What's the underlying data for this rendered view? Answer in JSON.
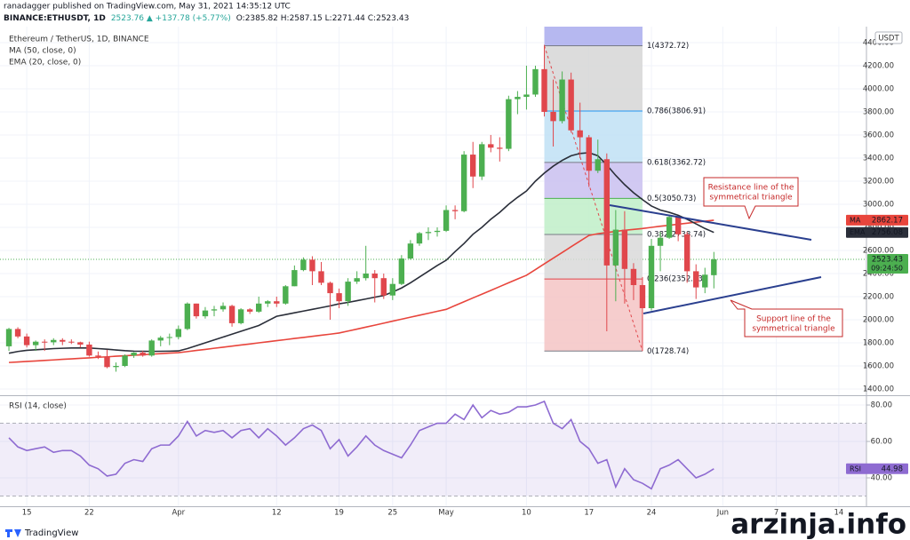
{
  "header": {
    "publisher": "ranadagger published on TradingView.com, May 31, 2021 14:35:12 UTC",
    "symbol": "BINANCE:ETHUSDT, 1D",
    "change": "2523.76 ▲ +137.78 (+5.77%)",
    "ohlc": "O:2385.82 H:2587.15 L:2271.44 C:2523.43"
  },
  "chart_data": {
    "type": "candlestick",
    "title": "Ethereum / TetherUS, 1D, BINANCE",
    "currency": "USDT",
    "timer": "09:24:50",
    "up_color": "#4caf50",
    "down_color": "#e0474c",
    "grid": true,
    "x": [
      0,
      1,
      2,
      3,
      4,
      5,
      6,
      7,
      8,
      9,
      10,
      11,
      12,
      13,
      14,
      15,
      16,
      17,
      18,
      19,
      20,
      21,
      22,
      23,
      24,
      25,
      26,
      27,
      28,
      29,
      30,
      31,
      32,
      33,
      34,
      35,
      36,
      37,
      38,
      39,
      40,
      41,
      42,
      43,
      44,
      45,
      46,
      47,
      48,
      49,
      50,
      51,
      52,
      53,
      54,
      55,
      56,
      57,
      58,
      59,
      60,
      61,
      62,
      63,
      64,
      65,
      66,
      67,
      68,
      69,
      70,
      71,
      72,
      73,
      74,
      75,
      76,
      77,
      78,
      79
    ],
    "open": [
      1770,
      1920,
      1855,
      1780,
      1810,
      1805,
      1825,
      1810,
      1805,
      1785,
      1690,
      1680,
      1590,
      1600,
      1690,
      1715,
      1690,
      1820,
      1845,
      1850,
      1920,
      2140,
      2030,
      2080,
      2090,
      2120,
      1970,
      2090,
      2070,
      2140,
      2160,
      2140,
      2290,
      2430,
      2520,
      2420,
      2320,
      2230,
      2160,
      2330,
      2360,
      2400,
      2360,
      2210,
      2310,
      2530,
      2660,
      2750,
      2760,
      2770,
      2950,
      2940,
      3430,
      3240,
      3520,
      3490,
      3480,
      3910,
      3930,
      3950,
      4170,
      3800,
      3720,
      4080,
      3640,
      3580,
      3290,
      3390,
      2470,
      2780,
      2440,
      2300,
      2100,
      2640,
      2710,
      2890,
      2740,
      2420,
      2280,
      2385.82
    ],
    "high": [
      1930,
      1935,
      1880,
      1820,
      1830,
      1840,
      1840,
      1830,
      1810,
      1810,
      1725,
      1740,
      1630,
      1700,
      1720,
      1730,
      1830,
      1860,
      1880,
      1950,
      2150,
      2140,
      2110,
      2120,
      2150,
      2130,
      2100,
      2100,
      2200,
      2170,
      2200,
      2300,
      2470,
      2540,
      2550,
      2500,
      2330,
      2270,
      2360,
      2420,
      2640,
      2430,
      2400,
      2360,
      2560,
      2690,
      2760,
      2800,
      2800,
      2990,
      2990,
      3460,
      3540,
      3540,
      3600,
      3580,
      3940,
      3980,
      4200,
      4200,
      4380,
      4080,
      4150,
      4140,
      3880,
      3600,
      3560,
      3440,
      2950,
      2940,
      2490,
      2370,
      2700,
      2760,
      2910,
      2900,
      2760,
      2480,
      2450,
      2587.15
    ],
    "low": [
      1730,
      1840,
      1760,
      1730,
      1730,
      1780,
      1780,
      1790,
      1760,
      1680,
      1660,
      1580,
      1550,
      1590,
      1670,
      1680,
      1680,
      1770,
      1780,
      1830,
      1910,
      2010,
      2010,
      2030,
      2070,
      1940,
      1960,
      2050,
      2060,
      2110,
      2110,
      2130,
      2290,
      2420,
      2300,
      2300,
      2000,
      2100,
      2120,
      2310,
      2340,
      2150,
      2180,
      2170,
      2300,
      2520,
      2640,
      2690,
      2720,
      2760,
      2870,
      2930,
      3140,
      3210,
      3450,
      3370,
      3460,
      3780,
      3820,
      3930,
      3760,
      3500,
      3700,
      3620,
      3400,
      3150,
      3270,
      1900,
      2160,
      2140,
      2170,
      1730,
      2080,
      2420,
      2700,
      2680,
      2320,
      2180,
      2230,
      2271.44
    ],
    "close": [
      1920,
      1855,
      1780,
      1810,
      1805,
      1825,
      1810,
      1805,
      1785,
      1690,
      1680,
      1590,
      1600,
      1690,
      1715,
      1690,
      1820,
      1845,
      1850,
      1920,
      2140,
      2030,
      2080,
      2090,
      2120,
      1970,
      2090,
      2070,
      2140,
      2160,
      2140,
      2290,
      2430,
      2520,
      2420,
      2320,
      2230,
      2160,
      2330,
      2360,
      2400,
      2360,
      2210,
      2310,
      2530,
      2660,
      2750,
      2760,
      2770,
      2950,
      2940,
      3430,
      3240,
      3520,
      3490,
      3480,
      3910,
      3930,
      3950,
      4170,
      3800,
      3720,
      4080,
      3640,
      3580,
      3290,
      3390,
      2470,
      2780,
      2440,
      2300,
      2100,
      2640,
      2710,
      2890,
      2740,
      2420,
      2280,
      2390,
      2523.43
    ],
    "ma": {
      "name": "MA (50, close, 0)",
      "tag": "MA",
      "color": "#e8453c",
      "values": [
        1630,
        1634,
        1639,
        1643,
        1648,
        1652,
        1657,
        1661,
        1666,
        1670,
        1675,
        1679,
        1684,
        1688,
        1693,
        1697,
        1702,
        1706,
        1711,
        1715,
        1724,
        1734,
        1743,
        1753,
        1762,
        1772,
        1781,
        1790,
        1800,
        1809,
        1819,
        1828,
        1838,
        1847,
        1856,
        1866,
        1875,
        1885,
        1902,
        1919,
        1936,
        1953,
        1970,
        1988,
        2005,
        2022,
        2039,
        2056,
        2073,
        2090,
        2123,
        2156,
        2189,
        2221,
        2254,
        2287,
        2320,
        2353,
        2385,
        2434,
        2484,
        2533,
        2582,
        2632,
        2681,
        2730,
        2745,
        2755,
        2765,
        2775,
        2782,
        2790,
        2800,
        2810,
        2818,
        2827,
        2836,
        2845,
        2853,
        2862.17
      ]
    },
    "ema": {
      "name": "EMA (20, close, 0)",
      "tag": "EMA",
      "color": "#2a2e39",
      "values": [
        1710,
        1725,
        1735,
        1740,
        1745,
        1750,
        1753,
        1755,
        1756,
        1755,
        1750,
        1745,
        1738,
        1732,
        1728,
        1727,
        1726,
        1727,
        1728,
        1730,
        1750,
        1775,
        1800,
        1825,
        1850,
        1875,
        1900,
        1925,
        1950,
        1990,
        2030,
        2045,
        2060,
        2075,
        2090,
        2105,
        2120,
        2138,
        2150,
        2165,
        2180,
        2195,
        2210,
        2240,
        2275,
        2320,
        2370,
        2420,
        2470,
        2515,
        2590,
        2660,
        2740,
        2800,
        2870,
        2930,
        3000,
        3060,
        3115,
        3200,
        3270,
        3330,
        3380,
        3420,
        3440,
        3446,
        3420,
        3340,
        3250,
        3170,
        3100,
        3040,
        2985,
        2950,
        2930,
        2905,
        2870,
        2830,
        2790,
        2756.08
      ]
    },
    "fib": {
      "xrange": [
        60,
        71
      ],
      "top_fill": "#b6b8f0",
      "line_color": "#e0474c",
      "levels": [
        {
          "label": "1(4372.72)",
          "value": 4372.72,
          "color": "#787b86"
        },
        {
          "label": "0.786(3806.91)",
          "value": 3806.91,
          "color": "#2196f3"
        },
        {
          "label": "0.618(3362.72)",
          "value": 3362.72,
          "color": "#787b86"
        },
        {
          "label": "0.5(3050.73)",
          "value": 3050.73,
          "color": "#4caf50"
        },
        {
          "label": "0.382(2738.74)",
          "value": 2738.74,
          "color": "#787b86"
        },
        {
          "label": "0.236(2352.73)",
          "value": 2352.73,
          "color": "#e0474c"
        },
        {
          "label": "0(1728.74)",
          "value": 1728.74,
          "color": "#787b86"
        }
      ],
      "fills": [
        "#d6d6d6",
        "#bfe0f5",
        "#c9bff0",
        "#bfeec8",
        "#d9d9d9",
        "#f5c4c4"
      ]
    },
    "ylim": [
      1354,
      4538
    ],
    "yticks": [
      {
        "value": 4400,
        "label": "4400.00"
      },
      {
        "value": 4200,
        "label": "4200.00"
      },
      {
        "value": 4000,
        "label": "4000.00"
      },
      {
        "value": 3800,
        "label": "3800.00"
      },
      {
        "value": 3600,
        "label": "3600.00"
      },
      {
        "value": 3400,
        "label": "3400.00"
      },
      {
        "value": 3200,
        "label": "3200.00"
      },
      {
        "value": 3000,
        "label": "3000.00"
      },
      {
        "value": 2800,
        "label": "2800.00"
      },
      {
        "value": 2600,
        "label": "2600.00"
      },
      {
        "value": 2400,
        "label": "2400.00"
      },
      {
        "value": 2200,
        "label": "2200.00"
      },
      {
        "value": 2000,
        "label": "2000.00"
      },
      {
        "value": 1800,
        "label": "1800.00"
      },
      {
        "value": 1600,
        "label": "1600.00"
      },
      {
        "value": 1400,
        "label": "1400.00"
      }
    ],
    "xlim": [
      -1,
      95.8
    ],
    "xticks": [
      {
        "value": 2,
        "label": "15"
      },
      {
        "value": 9,
        "label": "22"
      },
      {
        "value": 19,
        "label": "Apr"
      },
      {
        "value": 30,
        "label": "12"
      },
      {
        "value": 37,
        "label": "19"
      },
      {
        "value": 43,
        "label": "25"
      },
      {
        "value": 49,
        "label": "May"
      },
      {
        "value": 58,
        "label": "10"
      },
      {
        "value": 65,
        "label": "17"
      },
      {
        "value": 72,
        "label": "24"
      },
      {
        "value": 80,
        "label": "Jun"
      },
      {
        "value": 86,
        "label": "7"
      },
      {
        "value": 93,
        "label": "14"
      }
    ],
    "rsi": {
      "name": "RSI (14, close)",
      "tag": "RSI",
      "color": "#8e6bd1",
      "band": [
        30,
        70
      ],
      "band_color": "#8e6bd1",
      "values": [
        62,
        57,
        55,
        56,
        57,
        54,
        55,
        55,
        52,
        47,
        45,
        41,
        42,
        48,
        50,
        49,
        56,
        58,
        58,
        63,
        71,
        63,
        66,
        65,
        66,
        62,
        66,
        67,
        62,
        67,
        63,
        58,
        62,
        67,
        69,
        66,
        56,
        61,
        52,
        57,
        63,
        58,
        55,
        53,
        51,
        58,
        66,
        68,
        70,
        70,
        75,
        72,
        80,
        73,
        77,
        75,
        76,
        79,
        79,
        80,
        82,
        70,
        67,
        72,
        60,
        56,
        48,
        50,
        35,
        45,
        39,
        37,
        34,
        45,
        47,
        50,
        45,
        40,
        42,
        44.98
      ],
      "ylim": [
        24.4,
        84.4
      ],
      "yticks": [
        {
          "value": 80,
          "label": "80.00"
        },
        {
          "value": 60,
          "label": "60.00"
        },
        {
          "value": 40,
          "label": "40.00"
        }
      ]
    },
    "annotations": {
      "resistance": [
        "Resistance line of the",
        "symmetrical triangle"
      ],
      "support": [
        "Support line of the",
        "symmetrical triangle"
      ]
    }
  },
  "footer": {
    "brand": "TradingView",
    "watermark": "arzinja.info"
  }
}
